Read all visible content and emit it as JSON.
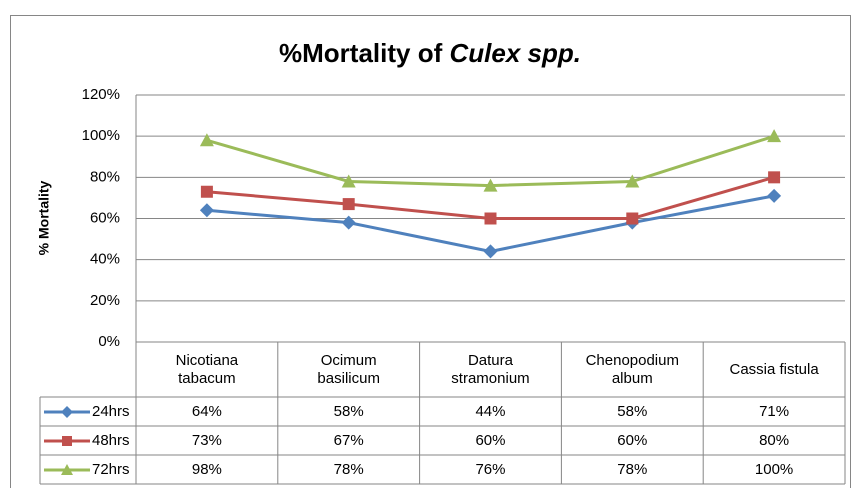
{
  "chart_data": {
    "type": "line",
    "title": [
      "%Mortality of",
      "Culex spp."
    ],
    "y_label": "% Mortality",
    "categories": [
      "Nicotiana tabacum",
      "Ocimum basilicum",
      "Datura stramonium",
      "Chenopodium album",
      "Cassia fistula"
    ],
    "series": [
      {
        "name": "24hrs",
        "color": "#4f81bd",
        "marker": "diamond",
        "values": [
          64,
          58,
          44,
          58,
          71
        ],
        "value_labels": [
          "64%",
          "58%",
          "44%",
          "58%",
          "71%"
        ]
      },
      {
        "name": "48hrs",
        "color": "#c0504d",
        "marker": "square",
        "values": [
          73,
          67,
          60,
          60,
          80
        ],
        "value_labels": [
          "73%",
          "67%",
          "60%",
          "60%",
          "80%"
        ]
      },
      {
        "name": "72hrs",
        "color": "#9bbb59",
        "marker": "triangle",
        "values": [
          98,
          78,
          76,
          78,
          100
        ],
        "value_labels": [
          "98%",
          "78%",
          "76%",
          "78%",
          "100%"
        ]
      }
    ],
    "ylim": [
      0,
      120
    ],
    "yticks": [
      {
        "value": 0,
        "label": "0%"
      },
      {
        "value": 20,
        "label": "20%"
      },
      {
        "value": 40,
        "label": "40%"
      },
      {
        "value": 60,
        "label": "60%"
      },
      {
        "value": 80,
        "label": "80%"
      },
      {
        "value": 100,
        "label": "100%"
      },
      {
        "value": 120,
        "label": "120%"
      }
    ],
    "grid": true
  }
}
